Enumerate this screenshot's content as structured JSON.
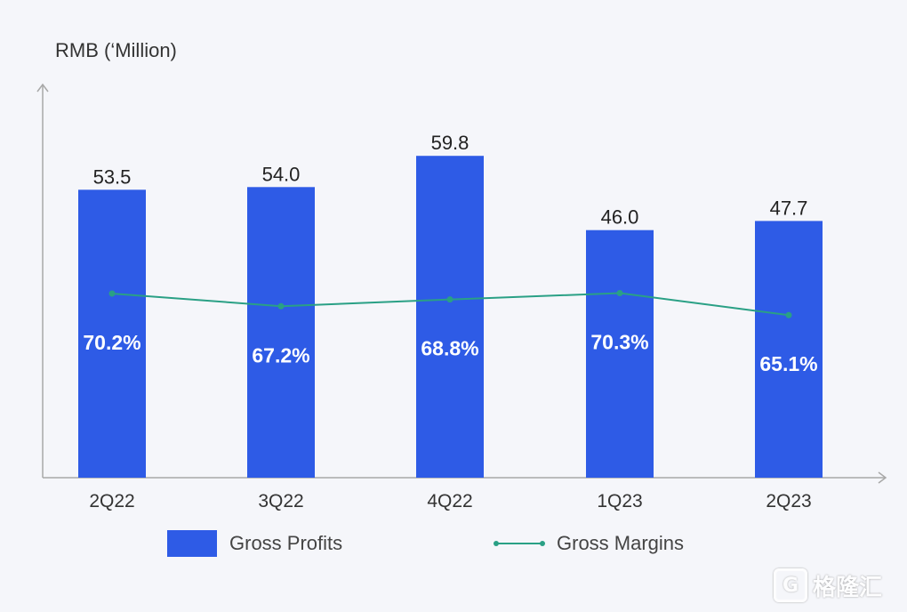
{
  "colors": {
    "bar": "#2e5be6",
    "line": "#2aa085",
    "axis": "#a8a8a8",
    "bar_label": "#222222",
    "margin_label": "#ffffff",
    "background": "#f5f6fa"
  },
  "unit_label": "RMB (‘Million)",
  "watermark": {
    "badge": "G",
    "text": "格隆汇"
  },
  "chart_data": {
    "type": "bar",
    "categories": [
      "2Q22",
      "3Q22",
      "4Q22",
      "1Q23",
      "2Q23"
    ],
    "ylim": [
      0,
      71.5
    ],
    "grid": false,
    "legend_position": "bottom",
    "series": [
      {
        "name": "Gross Profits",
        "type": "bar",
        "values": [
          53.5,
          54.0,
          59.8,
          46.0,
          47.7
        ],
        "labels": [
          "53.5",
          "54.0",
          "59.8",
          "46.0",
          "47.7"
        ]
      },
      {
        "name": "Gross Margins",
        "type": "line",
        "values": [
          70.2,
          67.2,
          68.8,
          70.3,
          65.1
        ],
        "labels": [
          "70.2%",
          "67.2%",
          "68.8%",
          "70.3%",
          "65.1%"
        ],
        "unit": "%"
      }
    ]
  }
}
